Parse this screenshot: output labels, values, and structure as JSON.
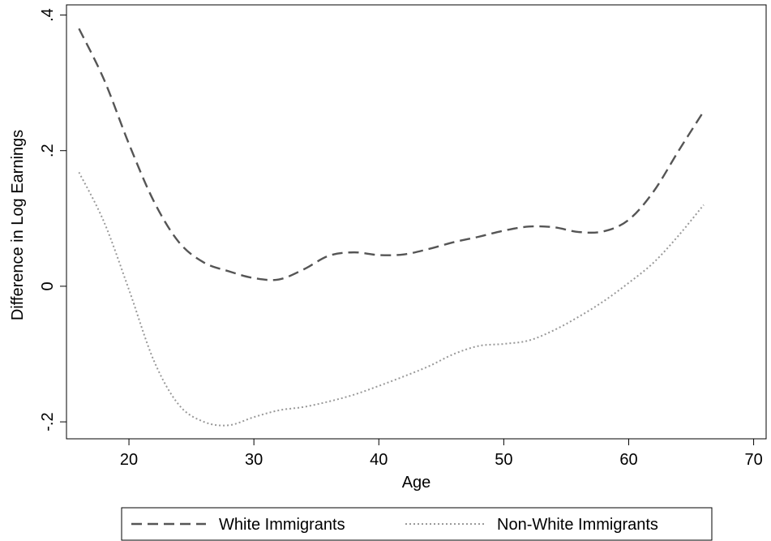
{
  "chart_data": {
    "type": "line",
    "title": "",
    "xlabel": "Age",
    "ylabel": "Difference in Log Earnings",
    "xlim": [
      15,
      71
    ],
    "ylim": [
      -0.225,
      0.415
    ],
    "xticks": [
      20,
      30,
      40,
      50,
      60,
      70
    ],
    "xtick_labels": [
      "20",
      "30",
      "40",
      "50",
      "60",
      "70"
    ],
    "yticks": [
      0.4,
      0.2,
      0,
      -0.2
    ],
    "ytick_labels": [
      ".4",
      ".2",
      "0",
      "-.2"
    ],
    "grid": false,
    "legend_position": "bottom",
    "series": [
      {
        "name": "White Immigrants",
        "color": "#555555",
        "style": "dashed",
        "x": [
          16,
          18,
          20,
          22,
          24,
          26,
          28,
          30,
          32,
          34,
          36,
          38,
          40,
          42,
          44,
          46,
          48,
          50,
          52,
          54,
          56,
          58,
          60,
          62,
          64,
          66
        ],
        "y": [
          0.38,
          0.305,
          0.21,
          0.125,
          0.065,
          0.035,
          0.022,
          0.012,
          0.01,
          0.025,
          0.045,
          0.05,
          0.046,
          0.047,
          0.055,
          0.065,
          0.073,
          0.082,
          0.088,
          0.087,
          0.08,
          0.081,
          0.098,
          0.14,
          0.2,
          0.258
        ]
      },
      {
        "name": "Non-White Immigrants",
        "color": "#999999",
        "style": "dotted",
        "x": [
          16,
          18,
          20,
          22,
          24,
          26,
          28,
          30,
          32,
          34,
          36,
          38,
          40,
          42,
          44,
          46,
          48,
          50,
          52,
          54,
          56,
          58,
          60,
          62,
          64,
          66
        ],
        "y": [
          0.168,
          0.095,
          -0.005,
          -0.11,
          -0.175,
          -0.2,
          -0.205,
          -0.193,
          -0.183,
          -0.178,
          -0.17,
          -0.16,
          -0.147,
          -0.133,
          -0.118,
          -0.1,
          -0.088,
          -0.085,
          -0.08,
          -0.065,
          -0.045,
          -0.022,
          0.005,
          0.035,
          0.075,
          0.12
        ]
      }
    ]
  }
}
